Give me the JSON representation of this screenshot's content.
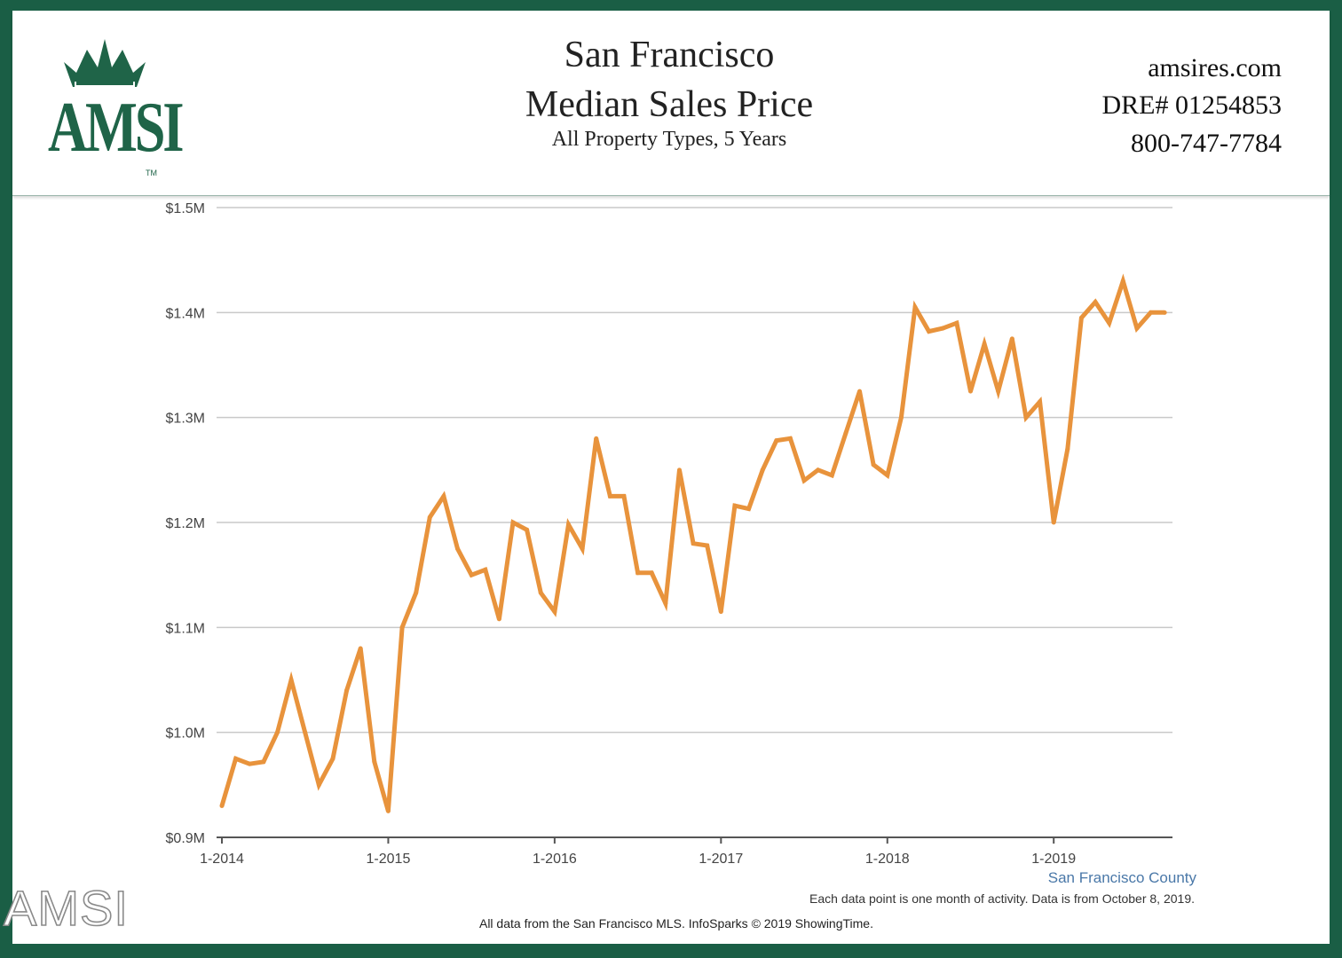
{
  "header": {
    "logo_text": "AMSI",
    "logo_tm": "TM",
    "title_line1": "San Francisco",
    "title_line2": "Median Sales Price",
    "subtitle": "All Property Types, 5 Years",
    "website": "amsires.com",
    "dre": "DRE# 01254853",
    "phone": "800-747-7784"
  },
  "colors": {
    "frame": "#1a5e45",
    "logo": "#1f6448",
    "line": "#e8933c",
    "legend": "#4a78a8"
  },
  "chart_data": {
    "type": "line",
    "title": "San Francisco Median Sales Price",
    "ylim": [
      900000,
      1500000
    ],
    "y_ticks": [
      {
        "value": 900000,
        "label": "$0.9M"
      },
      {
        "value": 1000000,
        "label": "$1.0M"
      },
      {
        "value": 1100000,
        "label": "$1.1M"
      },
      {
        "value": 1200000,
        "label": "$1.2M"
      },
      {
        "value": 1300000,
        "label": "$1.3M"
      },
      {
        "value": 1400000,
        "label": "$1.4M"
      },
      {
        "value": 1500000,
        "label": "$1.5M"
      }
    ],
    "x_ticks": [
      "1-2014",
      "1-2015",
      "1-2016",
      "1-2017",
      "1-2018",
      "1-2019"
    ],
    "grid": true,
    "series": [
      {
        "name": "San Francisco County",
        "x": [
          "2014-01",
          "2014-02",
          "2014-03",
          "2014-04",
          "2014-05",
          "2014-06",
          "2014-07",
          "2014-08",
          "2014-09",
          "2014-10",
          "2014-11",
          "2014-12",
          "2015-01",
          "2015-02",
          "2015-03",
          "2015-04",
          "2015-05",
          "2015-06",
          "2015-07",
          "2015-08",
          "2015-09",
          "2015-10",
          "2015-11",
          "2015-12",
          "2016-01",
          "2016-02",
          "2016-03",
          "2016-04",
          "2016-05",
          "2016-06",
          "2016-07",
          "2016-08",
          "2016-09",
          "2016-10",
          "2016-11",
          "2016-12",
          "2017-01",
          "2017-02",
          "2017-03",
          "2017-04",
          "2017-05",
          "2017-06",
          "2017-07",
          "2017-08",
          "2017-09",
          "2017-10",
          "2017-11",
          "2017-12",
          "2018-01",
          "2018-02",
          "2018-03",
          "2018-04",
          "2018-05",
          "2018-06",
          "2018-07",
          "2018-08",
          "2018-09",
          "2018-10",
          "2018-11",
          "2018-12",
          "2019-01",
          "2019-02",
          "2019-03",
          "2019-04",
          "2019-05",
          "2019-06",
          "2019-07",
          "2019-08",
          "2019-09"
        ],
        "values": [
          930000,
          975000,
          970000,
          972000,
          1000000,
          1050000,
          1000000,
          950000,
          975000,
          1040000,
          1080000,
          972000,
          925000,
          1100000,
          1133000,
          1205000,
          1225000,
          1175000,
          1150000,
          1155000,
          1108000,
          1200000,
          1193000,
          1133000,
          1115000,
          1198000,
          1175000,
          1280000,
          1225000,
          1225000,
          1152000,
          1152000,
          1123000,
          1250000,
          1180000,
          1178000,
          1115000,
          1216000,
          1213000,
          1250000,
          1278000,
          1280000,
          1240000,
          1250000,
          1245000,
          1285000,
          1325000,
          1255000,
          1245000,
          1300000,
          1405000,
          1382000,
          1385000,
          1390000,
          1325000,
          1370000,
          1325000,
          1375000,
          1300000,
          1315000,
          1200000,
          1270000,
          1395000,
          1410000,
          1390000,
          1430000,
          1385000,
          1400000,
          1400000
        ]
      }
    ],
    "legend_position": "bottom-right",
    "footnote": "Each data point is one month of activity. Data is from October 8, 2019.",
    "source": "All data from the San Francisco MLS. InfoSparks © 2019 ShowingTime."
  },
  "watermark": "AMSI"
}
